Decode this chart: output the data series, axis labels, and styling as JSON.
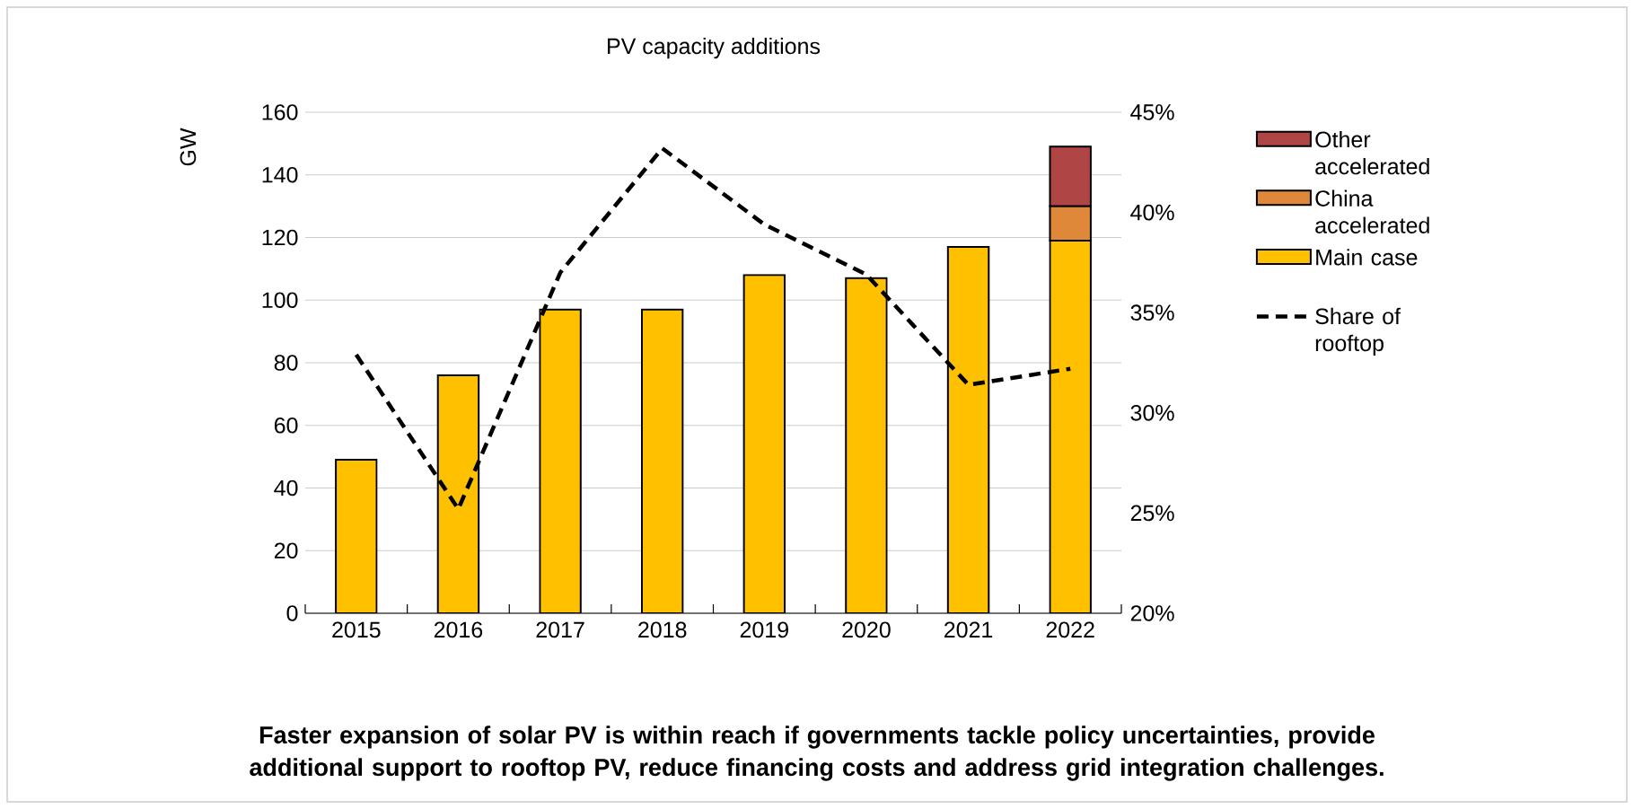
{
  "chart_data": {
    "type": "bar",
    "title": "PV capacity additions",
    "ylabel": "GW",
    "categories": [
      "2015",
      "2016",
      "2017",
      "2018",
      "2019",
      "2020",
      "2021",
      "2022"
    ],
    "stacked": true,
    "grid": "y",
    "legend": "right",
    "ylim": [
      0,
      160
    ],
    "yticks": [
      0,
      20,
      40,
      60,
      80,
      100,
      120,
      140,
      160
    ],
    "y2lim": [
      20,
      45
    ],
    "y2ticks": [
      {
        "value": 20,
        "label": "20%"
      },
      {
        "value": 25,
        "label": "25%"
      },
      {
        "value": 30,
        "label": "30%"
      },
      {
        "value": 35,
        "label": "35%"
      },
      {
        "value": 40,
        "label": "40%"
      },
      {
        "value": 45,
        "label": "45%"
      }
    ],
    "series": [
      {
        "name": "Main case",
        "color": "#ffc000",
        "values": [
          49,
          76,
          97,
          97,
          108,
          107,
          117,
          119
        ]
      },
      {
        "name": "China accelerated",
        "color": "#e0883a",
        "values": [
          null,
          null,
          null,
          null,
          null,
          null,
          null,
          11
        ]
      },
      {
        "name": "Other accelerated",
        "color": "#b04545",
        "values": [
          null,
          null,
          null,
          null,
          null,
          null,
          null,
          19
        ]
      },
      {
        "name": "Share of rooftop",
        "type": "line",
        "axis": "y2",
        "color": "#000000",
        "line_style": "dashed",
        "values": [
          32.9,
          25.2,
          37.0,
          43.2,
          39.4,
          36.9,
          31.4,
          32.2
        ]
      }
    ],
    "annotations": [
      "Faster expansion of solar PV is within reach if governments tackle policy uncertainties, provide additional support to rooftop PV, reduce financing costs and address grid integration challenges."
    ]
  }
}
